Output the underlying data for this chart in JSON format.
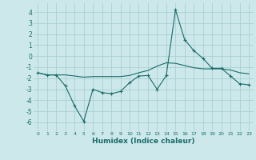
{
  "xlabel": "Humidex (Indice chaleur)",
  "bg_color": "#cce8ea",
  "grid_color": "#aacfd2",
  "line_color": "#1a6b6b",
  "x_ticks": [
    0,
    1,
    2,
    3,
    4,
    5,
    6,
    7,
    8,
    9,
    10,
    11,
    12,
    13,
    14,
    15,
    16,
    17,
    18,
    19,
    20,
    21,
    22,
    23
  ],
  "y_ticks": [
    -6,
    -5,
    -4,
    -3,
    -2,
    -1,
    0,
    1,
    2,
    3,
    4
  ],
  "xlim": [
    -0.5,
    23.5
  ],
  "ylim": [
    -6.8,
    4.8
  ],
  "line1_x": [
    0,
    1,
    2,
    3,
    4,
    5,
    6,
    7,
    8,
    9,
    10,
    11,
    12,
    13,
    14,
    15,
    16,
    17,
    18,
    19,
    20,
    21,
    22,
    23
  ],
  "line1_y": [
    -1.5,
    -1.7,
    -1.7,
    -1.7,
    -1.8,
    -1.9,
    -1.85,
    -1.85,
    -1.85,
    -1.85,
    -1.75,
    -1.5,
    -1.3,
    -0.9,
    -0.6,
    -0.65,
    -0.85,
    -1.05,
    -1.15,
    -1.15,
    -1.15,
    -1.25,
    -1.5,
    -1.6
  ],
  "line2_x": [
    0,
    1,
    2,
    3,
    4,
    5,
    6,
    7,
    8,
    9,
    10,
    11,
    12,
    13,
    14,
    15,
    16,
    17,
    18,
    19,
    20,
    21,
    22,
    23
  ],
  "line2_y": [
    -1.5,
    -1.7,
    -1.7,
    -2.7,
    -4.5,
    -5.9,
    -3.0,
    -3.3,
    -3.4,
    -3.2,
    -2.4,
    -1.8,
    -1.75,
    -3.0,
    -1.75,
    4.2,
    1.5,
    0.5,
    -0.2,
    -1.1,
    -1.1,
    -1.8,
    -2.5,
    -2.6
  ]
}
